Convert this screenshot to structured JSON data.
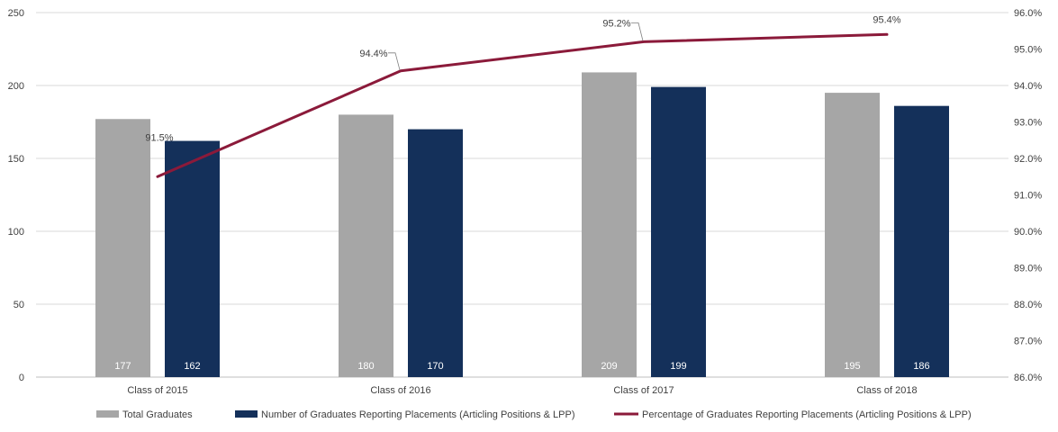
{
  "chart_data": {
    "type": "bar",
    "categories": [
      "Class of 2015",
      "Class of 2016",
      "Class of 2017",
      "Class of 2018"
    ],
    "series": [
      {
        "name": "Total Graduates",
        "type": "bar",
        "axis": "left",
        "color": "#a6a6a6",
        "values": [
          177,
          180,
          209,
          195
        ],
        "labels": [
          "177",
          "180",
          "209",
          "195"
        ]
      },
      {
        "name": "Number of Graduates Reporting Placements (Articling Positions & LPP)",
        "type": "bar",
        "axis": "left",
        "color": "#14305a",
        "values": [
          162,
          170,
          199,
          186
        ],
        "labels": [
          "162",
          "170",
          "199",
          "186"
        ]
      },
      {
        "name": "Percentage of Graduates Reporting Placements (Articling Positions & LPP)",
        "type": "line",
        "axis": "right",
        "color": "#8b1a3a",
        "values": [
          91.5,
          94.4,
          95.2,
          95.4
        ],
        "labels": [
          "91.5%",
          "94.4%",
          "95.2%",
          "95.4%"
        ]
      }
    ],
    "y_left": {
      "min": 0,
      "max": 250,
      "step": 50,
      "ticks": [
        "0",
        "50",
        "100",
        "150",
        "200",
        "250"
      ]
    },
    "y_right": {
      "min": 86,
      "max": 96,
      "step": 1,
      "ticks": [
        "86.0%",
        "87.0%",
        "88.0%",
        "89.0%",
        "90.0%",
        "91.0%",
        "92.0%",
        "93.0%",
        "94.0%",
        "95.0%",
        "96.0%"
      ]
    },
    "grid": true,
    "legend_position": "bottom",
    "title": "",
    "xlabel": "",
    "ylabel": ""
  }
}
